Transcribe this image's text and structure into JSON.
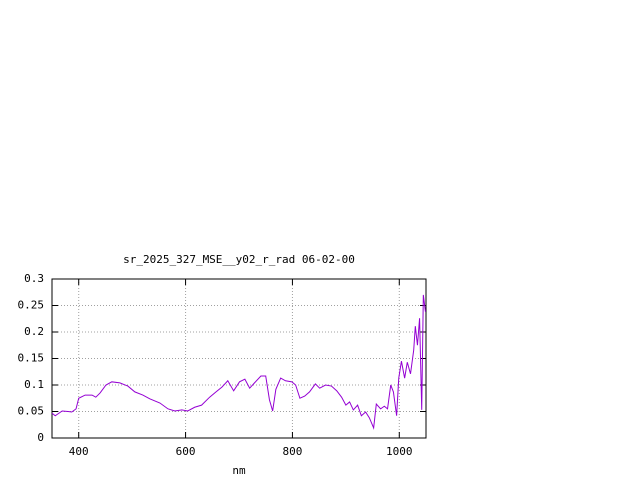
{
  "chart_data": {
    "type": "line",
    "title": "sr_2025_327_MSE__y02_r_rad 06-02-00",
    "x_label": "nm",
    "xlim": [
      350,
      1050
    ],
    "xticks": [
      400,
      600,
      800,
      1000
    ],
    "ylim": [
      0,
      0.3
    ],
    "yticks": [
      0,
      0.05,
      0.1,
      0.15,
      0.2,
      0.25,
      0.3
    ],
    "grid": true,
    "series": [
      {
        "color": "#9400d3",
        "x": [
          350,
          356,
          369,
          380,
          387,
          395,
          400,
          412,
          425,
          432,
          440,
          451,
          462,
          477,
          492,
          505,
          520,
          533,
          552,
          567,
          580,
          593,
          604,
          617,
          630,
          645,
          657,
          668,
          679,
          690,
          701,
          711,
          720,
          729,
          741,
          750,
          757,
          763,
          769,
          778,
          787,
          799,
          806,
          814,
          823,
          832,
          843,
          851,
          862,
          873,
          883,
          892,
          900,
          907,
          914,
          922,
          929,
          937,
          944,
          952,
          957,
          965,
          972,
          978,
          984,
          989,
          995,
          999,
          1004,
          1010,
          1015,
          1021,
          1027,
          1030,
          1034,
          1038,
          1042,
          1045,
          1049
        ],
        "values": [
          0.047,
          0.042,
          0.051,
          0.05,
          0.049,
          0.055,
          0.075,
          0.081,
          0.081,
          0.077,
          0.085,
          0.1,
          0.106,
          0.104,
          0.098,
          0.087,
          0.081,
          0.074,
          0.066,
          0.055,
          0.051,
          0.053,
          0.051,
          0.058,
          0.062,
          0.077,
          0.087,
          0.096,
          0.108,
          0.089,
          0.106,
          0.111,
          0.094,
          0.104,
          0.117,
          0.117,
          0.072,
          0.051,
          0.092,
          0.113,
          0.108,
          0.106,
          0.1,
          0.075,
          0.079,
          0.087,
          0.102,
          0.094,
          0.1,
          0.098,
          0.089,
          0.077,
          0.062,
          0.068,
          0.053,
          0.062,
          0.042,
          0.049,
          0.038,
          0.019,
          0.064,
          0.055,
          0.06,
          0.055,
          0.1,
          0.087,
          0.042,
          0.113,
          0.145,
          0.113,
          0.143,
          0.121,
          0.166,
          0.211,
          0.175,
          0.226,
          0.053,
          0.27,
          0.238
        ]
      }
    ]
  }
}
